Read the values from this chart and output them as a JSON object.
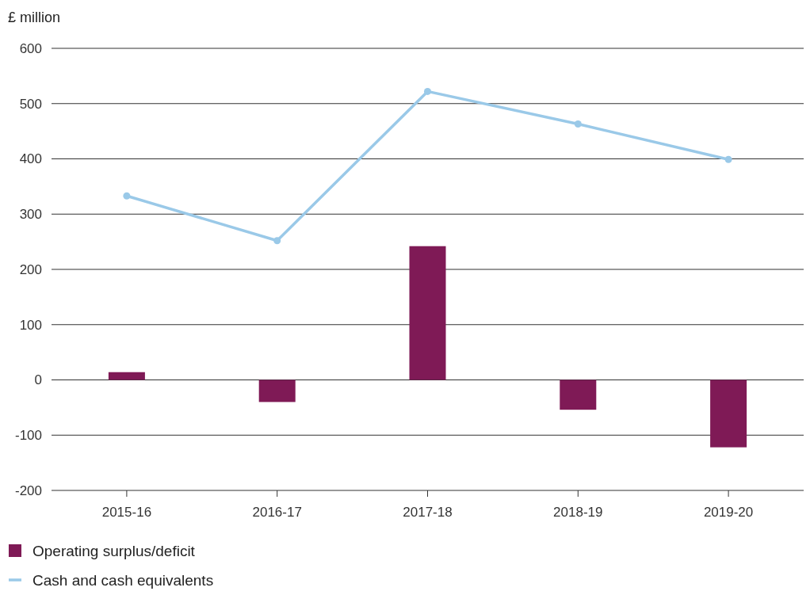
{
  "chart_data": {
    "type": "bar",
    "ylabel": "£ million",
    "categories": [
      "2015-16",
      "2016-17",
      "2017-18",
      "2018-19",
      "2019-20"
    ],
    "series": [
      {
        "name": "Operating surplus/deficit",
        "color": "#7f1a56",
        "values": [
          14,
          -40,
          242,
          -54,
          -122
        ]
      },
      {
        "name": "Cash and cash equivalents",
        "type": "line",
        "color": "#9ac9e8",
        "values": [
          333,
          252,
          522,
          463,
          399
        ]
      }
    ],
    "ylim": [
      -200,
      600
    ],
    "yticks": [
      -200,
      -100,
      0,
      100,
      200,
      300,
      400,
      500,
      600
    ],
    "grid": "y",
    "legend": "bottom left",
    "marker": "circle",
    "line_style": "solid"
  }
}
